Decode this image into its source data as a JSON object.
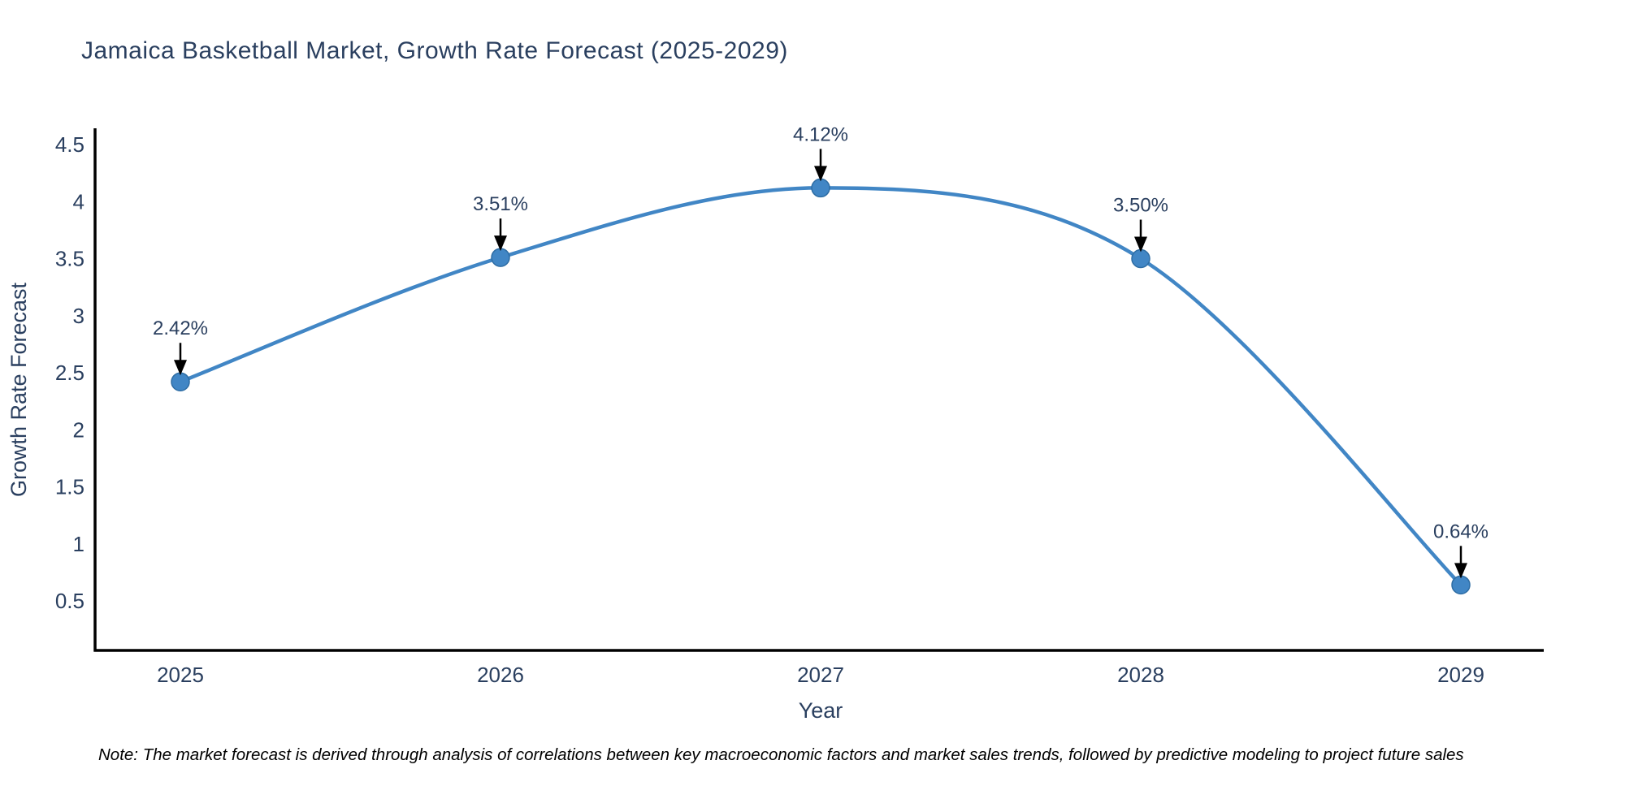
{
  "title": "Jamaica Basketball Market, Growth Rate Forecast (2025-2029)",
  "note": "Note: The market forecast is derived through analysis of correlations between key macroeconomic factors and market sales trends, followed by predictive modeling to project future sales",
  "chart_data": {
    "type": "line",
    "title": "Jamaica Basketball Market, Growth Rate Forecast (2025-2029)",
    "xlabel": "Year",
    "ylabel": "Growth Rate Forecast",
    "x": [
      2025,
      2026,
      2027,
      2028,
      2029
    ],
    "y": [
      2.42,
      3.51,
      4.12,
      3.5,
      0.64
    ],
    "point_labels": [
      "2.42%",
      "3.51%",
      "4.12%",
      "3.50%",
      "0.64%"
    ],
    "xticks": [
      "2025",
      "2026",
      "2027",
      "2028",
      "2029"
    ],
    "yticks": [
      0.5,
      1,
      1.5,
      2,
      2.5,
      3,
      3.5,
      4,
      4.5
    ],
    "ylim": [
      0.07,
      4.63
    ],
    "xlim": [
      2024.73,
      2029.26
    ],
    "grid": false,
    "legend_position": "none",
    "line_shape": "spline",
    "colors": {
      "line": "#4186c5",
      "marker_fill": "#4186c5",
      "marker_edge": "#2e6da4",
      "axis_line": "#000000",
      "tick_text": "#2a3f5f",
      "annotation_text": "#2a3f5f",
      "annotation_arrow": "#000000"
    }
  }
}
